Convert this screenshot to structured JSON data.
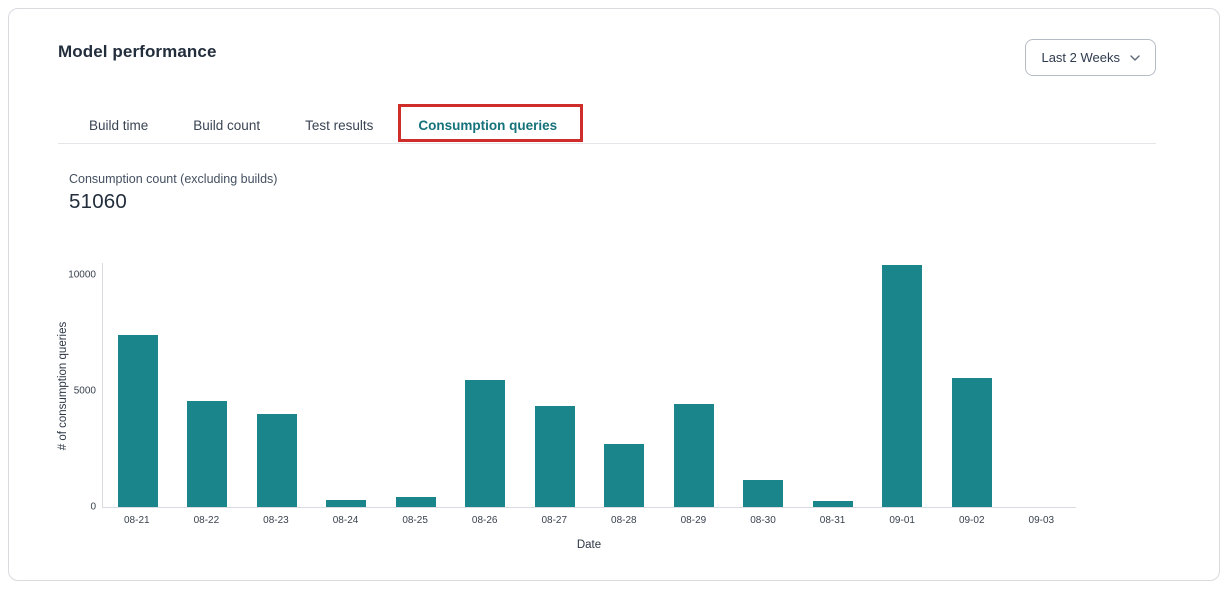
{
  "header": {
    "title": "Model performance"
  },
  "period_selector": {
    "label": "Last 2 Weeks",
    "icon": "chevron-down"
  },
  "tabs": [
    {
      "label": "Build time",
      "active": false
    },
    {
      "label": "Build count",
      "active": false
    },
    {
      "label": "Test results",
      "active": false
    },
    {
      "label": "Consumption queries",
      "active": true,
      "annotated": true
    }
  ],
  "metric": {
    "label": "Consumption count (excluding builds)",
    "value": "51060"
  },
  "colors": {
    "bar": "#1a868c",
    "active_tab": "#15727a",
    "annotation_box": "#ce2d29",
    "axis_line": "#d9dbe0"
  },
  "chart_data": {
    "type": "bar",
    "categories": [
      "08-21",
      "08-22",
      "08-23",
      "08-24",
      "08-25",
      "08-26",
      "08-27",
      "08-28",
      "08-29",
      "08-30",
      "08-31",
      "09-01",
      "09-02",
      "09-03"
    ],
    "values": [
      7400,
      4560,
      4020,
      300,
      450,
      5460,
      4350,
      2700,
      4450,
      1150,
      240,
      10420,
      5560,
      0
    ],
    "title": "",
    "xlabel": "Date",
    "ylabel": "# of consumption queries",
    "ylim": [
      0,
      10500
    ],
    "yticks": [
      0,
      5000,
      10000
    ],
    "grid": false,
    "legend": false,
    "bar_color": "#1a868c"
  }
}
